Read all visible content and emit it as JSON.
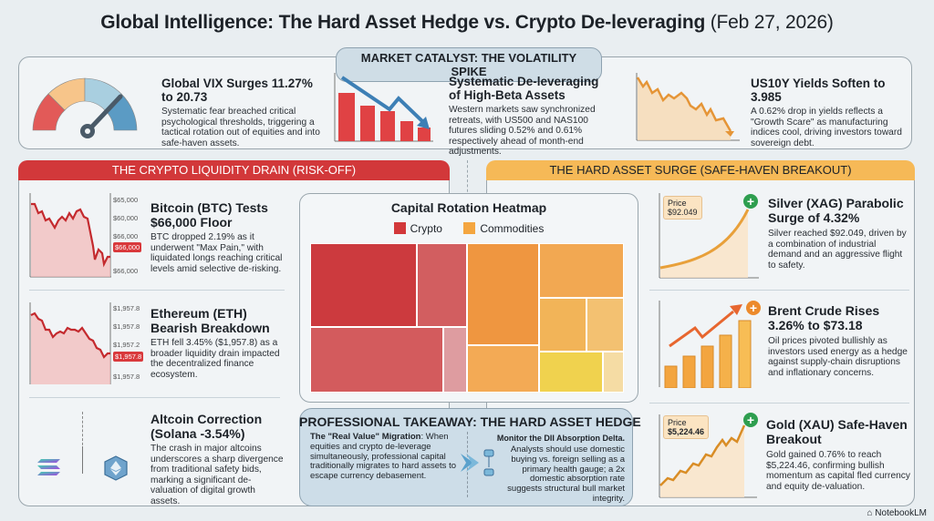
{
  "title": {
    "main": "Global Intelligence: The Hard Asset Hedge vs. Crypto De-leveraging",
    "date": "(Feb 27, 2026)"
  },
  "catalyst": {
    "tag": "MARKET CATALYST: THE VOLATILITY SPIKE",
    "items": [
      {
        "title": "Global VIX Surges 11.27% to 20.73",
        "body": "Systematic fear breached critical psychological thresholds, triggering a tactical rotation out of equities and into safe-haven assets.",
        "icon": "gauge-icon"
      },
      {
        "title": "Systematic De-leveraging of High-Beta Assets",
        "body": "Western markets saw synchronized retreats, with US500 and NAS100 futures sliding 0.52% and 0.61% respectively ahead of month-end adjustments.",
        "icon": "falling-bars-icon"
      },
      {
        "title": "US10Y Yields Soften to 3.985",
        "body": "A 0.62% drop in yields reflects a \"Growth Scare\" as manufacturing indices cool, driving investors toward sovereign debt.",
        "icon": "falling-line-icon"
      }
    ]
  },
  "crypto": {
    "header": "THE CRYPTO LIQUIDITY DRAIN (RISK-OFF)",
    "btc": {
      "title": "Bitcoin (BTC) Tests $66,000 Floor",
      "body": "BTC dropped 2.19% as it underwent \"Max Pain,\" with liquidated longs reaching critical levels amid selective de-risking.",
      "ticks": [
        "$65,000",
        "$60,000",
        "$66,000",
        "$66,000"
      ],
      "current": "$66,000"
    },
    "eth": {
      "title": "Ethereum (ETH) Bearish Breakdown",
      "body": "ETH fell 3.45% ($1,957.8) as a broader liquidity drain impacted the decentralized finance ecosystem.",
      "ticks": [
        "$1,957.8",
        "$1,957.8",
        "$1,957.2",
        "$1,957.8"
      ],
      "current": "$1,957.8"
    },
    "alt": {
      "title": "Altcoin Correction (Solana -3.54%)",
      "body": "The crash in major altcoins underscores a sharp divergence from traditional safety bids, marking a significant de-valuation of digital growth assets."
    }
  },
  "heatmap": {
    "title": "Capital Rotation Heatmap",
    "legend": [
      {
        "label": "Crypto",
        "color": "#d2383a"
      },
      {
        "label": "Commodities",
        "color": "#f4a640"
      }
    ]
  },
  "takeaway": {
    "title": "PROFESSIONAL TAKEAWAY: THE HARD ASSET HEDGE",
    "left_bold": "The \"Real Value\" Migration",
    "left_body": ": When equities and crypto de-leverage simultaneously, professional capital traditionally migrates to hard assets to escape currency debasement.",
    "right_bold": "Monitor the DII Absorption Delta.",
    "right_body": "Analysts should use domestic buying vs. foreign selling as a primary health gauge; a 2x domestic absorption rate suggests structural bull market integrity."
  },
  "hard": {
    "header": "THE HARD ASSET SURGE (SAFE-HAVEN BREAKOUT)",
    "silver": {
      "title": "Silver (XAG) Parabolic Surge of 4.32%",
      "body": "Silver reached $92.049, driven by a combination of industrial demand and an aggressive flight to safety.",
      "price_label": "Price",
      "price": "$92.049"
    },
    "brent": {
      "title": "Brent Crude Rises 3.26% to $73.18",
      "body": "Oil prices pivoted bullishly as investors used energy as a hedge against supply-chain disruptions and inflationary concerns."
    },
    "gold": {
      "title": "Gold (XAU) Safe-Haven Breakout",
      "body": "Gold gained 0.76% to reach $5,224.46, confirming bullish momentum as capital fled currency and equity de-valuation.",
      "price_label": "Price",
      "price": "$5,224.46"
    }
  },
  "footer": {
    "brand": "NotebookLM"
  }
}
